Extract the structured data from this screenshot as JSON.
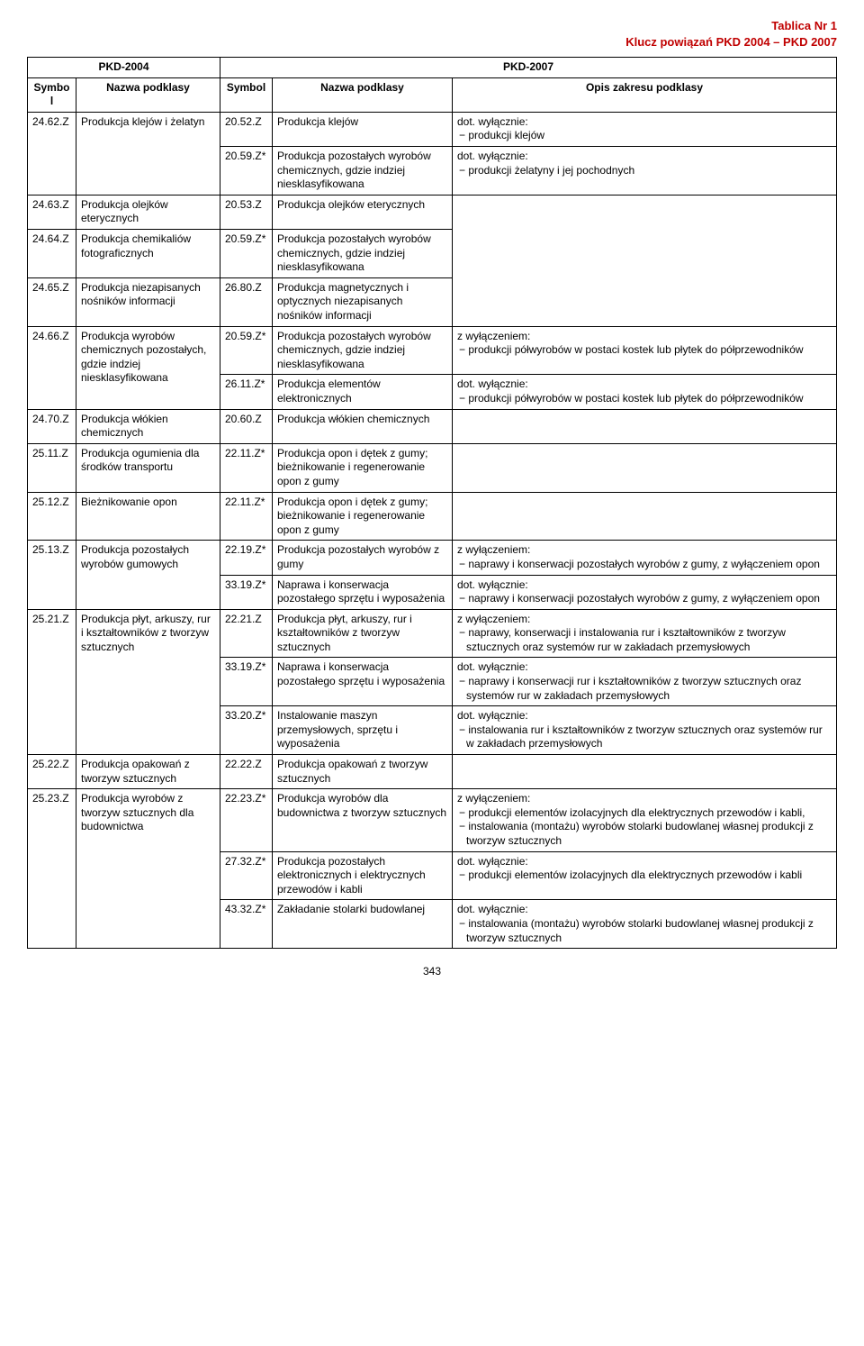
{
  "header": {
    "line1": "Tablica Nr 1",
    "line2": "Klucz powiązań  PKD 2004 – PKD 2007"
  },
  "table": {
    "head": {
      "pkd2004": "PKD-2004",
      "pkd2007": "PKD-2007",
      "symbol": "Symbol",
      "nazwa": "Nazwa podklasy",
      "opis": "Opis zakresu podklasy"
    },
    "rows": [
      {
        "sym1": "24.62.Z",
        "name1": "Produkcja klejów i żelatyn",
        "rowspan1": 2,
        "sym2": "20.52.Z",
        "name2": "Produkcja klejów",
        "opis_pre": "dot. wyłącznie:",
        "opis_items": [
          "produkcji klejów"
        ]
      },
      {
        "sym2": "20.59.Z*",
        "name2": "Produkcja pozostałych wyrobów chemicznych, gdzie indziej niesklasyfikowana",
        "opis_pre": "dot. wyłącznie:",
        "opis_items": [
          "produkcji żelatyny i jej pochodnych"
        ]
      },
      {
        "sym1": "24.63.Z",
        "name1": "Produkcja olejków eterycznych",
        "rowspan1": 1,
        "sym2": "20.53.Z",
        "name2": "Produkcja olejków eterycznych",
        "opis": "",
        "opis_rowspan": 3
      },
      {
        "sym1": "24.64.Z",
        "name1": "Produkcja chemikaliów fotograficznych",
        "rowspan1": 1,
        "sym2": "20.59.Z*",
        "name2": "Produkcja pozostałych wyrobów chemicznych, gdzie indziej niesklasyfikowana"
      },
      {
        "sym1": "24.65.Z",
        "name1": "Produkcja niezapisanych nośników informacji",
        "rowspan1": 1,
        "sym2": "26.80.Z",
        "name2": "Produkcja magnetycznych i optycznych niezapisanych nośników informacji"
      },
      {
        "sym1": "24.66.Z",
        "name1": "Produkcja wyrobów chemicznych pozostałych, gdzie indziej niesklasyfikowana",
        "rowspan1": 2,
        "sym2": "20.59.Z*",
        "name2": "Produkcja pozostałych wyrobów chemicznych, gdzie indziej niesklasyfikowana",
        "opis_pre": "z wyłączeniem:",
        "opis_items": [
          "produkcji półwyrobów w postaci kostek lub płytek do półprzewodników"
        ]
      },
      {
        "sym2": "26.11.Z*",
        "name2": "Produkcja elementów elektronicznych",
        "opis_pre": "dot. wyłącznie:",
        "opis_items": [
          "produkcji półwyrobów w postaci kostek lub płytek do półprzewodników"
        ]
      },
      {
        "sym1": "24.70.Z",
        "name1": "Produkcja włókien chemicznych",
        "rowspan1": 1,
        "sym2": "20.60.Z",
        "name2": "Produkcja włókien chemicznych",
        "opis": ""
      },
      {
        "sym1": "25.11.Z",
        "name1": "Produkcja ogumienia dla środków transportu",
        "rowspan1": 1,
        "sym2": "22.11.Z*",
        "name2": "Produkcja opon i dętek z gumy; bieżnikowanie i regenerowanie opon z gumy",
        "opis": ""
      },
      {
        "sym1": "25.12.Z",
        "name1": "Bieżnikowanie opon",
        "rowspan1": 1,
        "sym2": "22.11.Z*",
        "name2": "Produkcja opon i dętek z gumy; bieżnikowanie i regenerowanie opon z gumy",
        "opis": ""
      },
      {
        "sym1": "25.13.Z",
        "name1": "Produkcja pozostałych wyrobów gumowych",
        "rowspan1": 2,
        "sym2": "22.19.Z*",
        "name2": "Produkcja pozostałych wyrobów z gumy",
        "opis_pre": "z wyłączeniem:",
        "opis_items": [
          "naprawy i konserwacji pozostałych wyrobów z gumy, z wyłączeniem opon"
        ]
      },
      {
        "sym2": "33.19.Z*",
        "name2": "Naprawa i konserwacja pozostałego sprzętu i wyposażenia",
        "opis_pre": "dot. wyłącznie:",
        "opis_items": [
          "naprawy i konserwacji pozostałych wyrobów z gumy, z wyłączeniem opon"
        ]
      },
      {
        "sym1": "25.21.Z",
        "name1": "Produkcja płyt, arkuszy, rur i kształtowników z tworzyw sztucznych",
        "rowspan1": 3,
        "sym2": "22.21.Z",
        "name2": "Produkcja płyt, arkuszy, rur i kształtowników z tworzyw sztucznych",
        "opis_pre": "z wyłączeniem:",
        "opis_items": [
          "naprawy, konserwacji i instalowania rur i kształtowników z tworzyw sztucznych oraz systemów  rur w zakładach przemysłowych"
        ]
      },
      {
        "sym2": "33.19.Z*",
        "name2": "Naprawa i konserwacja pozostałego sprzętu i wyposażenia",
        "opis_pre": "dot. wyłącznie:",
        "opis_items": [
          "naprawy i konserwacji  rur i kształtowników z tworzyw sztucznych oraz systemów  rur w zakładach przemysłowych"
        ]
      },
      {
        "sym2": "33.20.Z*",
        "name2": "Instalowanie maszyn przemysłowych, sprzętu i wyposażenia",
        "opis_pre": "dot. wyłącznie:",
        "opis_items": [
          "instalowania rur i kształtowników z tworzyw sztucznych oraz systemów  rur w zakładach przemysłowych"
        ]
      },
      {
        "sym1": "25.22.Z",
        "name1": "Produkcja opakowań z tworzyw sztucznych",
        "rowspan1": 1,
        "sym2": "22.22.Z",
        "name2": "Produkcja opakowań z tworzyw sztucznych",
        "opis": ""
      },
      {
        "sym1": "25.23.Z",
        "name1": "Produkcja wyrobów z tworzyw sztucznych dla budownictwa",
        "rowspan1": 3,
        "sym2": "22.23.Z*",
        "name2": "Produkcja wyrobów dla budownictwa z tworzyw sztucznych",
        "opis_pre": "z wyłączeniem:",
        "opis_items": [
          "produkcji elementów izolacyjnych dla elektrycznych przewodów i kabli,",
          "instalowania (montażu) wyrobów  stolarki budowlanej własnej produkcji z tworzyw sztucznych"
        ]
      },
      {
        "sym2": "27.32.Z*",
        "name2": "Produkcja pozostałych elektronicznych i elektrycznych przewodów i kabli",
        "opis_pre": "dot. wyłącznie:",
        "opis_items": [
          "produkcji elementów izolacyjnych dla elektrycznych przewodów i kabli"
        ]
      },
      {
        "sym2": "43.32.Z*",
        "name2": "Zakładanie stolarki budowlanej",
        "opis_pre": "dot. wyłącznie:",
        "opis_items": [
          "instalowania (montażu) wyrobów stolarki budowlanej własnej produkcji z tworzyw sztucznych"
        ]
      }
    ]
  },
  "footer": "343",
  "colors": {
    "red": "#c00000"
  }
}
